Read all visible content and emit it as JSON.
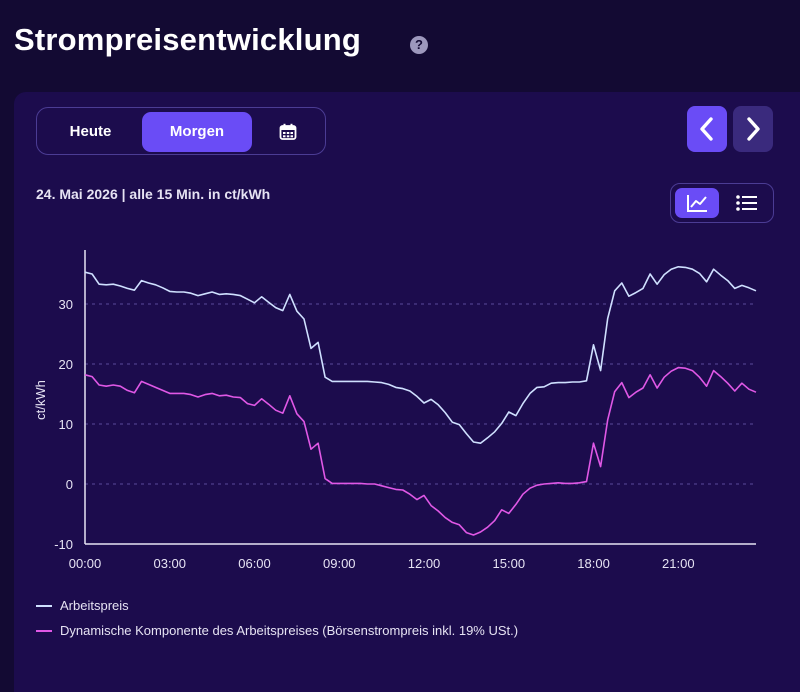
{
  "header": {
    "title": "Strompreisentwicklung",
    "help_icon": "question-circle-icon",
    "help_glyph": "?"
  },
  "controls": {
    "tabs": [
      {
        "label": "Heute",
        "active": false
      },
      {
        "label": "Morgen",
        "active": true
      }
    ],
    "calendar_icon": "calendar-icon",
    "prev_icon": "chevron-left-icon",
    "next_icon": "chevron-right-icon",
    "view_chart_icon": "line-chart-icon",
    "view_list_icon": "list-icon"
  },
  "colors": {
    "background": "#130a33",
    "card": "#1c0c4d",
    "accent": "#6a4cf6",
    "series_arbeitspreis": "#cfe0ff",
    "series_dynamisch": "#e058e6"
  },
  "chart_data": {
    "type": "line",
    "title": "24. Mai 2026 | alle 15 Min. in ct/kWh",
    "xlabel": "",
    "ylabel": "ct/kWh",
    "xlim": [
      "00:00",
      "23:45"
    ],
    "ylim": [
      -10,
      38
    ],
    "x_ticks": [
      "00:00",
      "03:00",
      "06:00",
      "09:00",
      "12:00",
      "15:00",
      "18:00",
      "21:00"
    ],
    "y_ticks": [
      -10,
      0,
      10,
      20,
      30
    ],
    "grid": "horizontal-dashed",
    "legend_position": "bottom-left",
    "x_step_minutes": 15,
    "series": [
      {
        "name": "Arbeitspreis",
        "values": [
          35.3,
          35,
          33.3,
          33.2,
          33.3,
          33,
          32.6,
          32.3,
          33.9,
          33.5,
          33.2,
          32.7,
          32.1,
          32,
          32,
          31.8,
          31.4,
          31.7,
          32,
          31.6,
          31.7,
          31.6,
          31.4,
          30.8,
          30.2,
          31.2,
          30.3,
          29.4,
          28.9,
          31.6,
          28.8,
          27.5,
          22.6,
          23.6,
          17.8,
          17.1,
          17.1,
          17.1,
          17.1,
          17.1,
          17.1,
          17,
          16.9,
          16.6,
          16.1,
          15.9,
          15.5,
          14.6,
          13.5,
          14.1,
          13.2,
          11.9,
          10.3,
          9.9,
          8.4,
          7,
          6.8,
          7.7,
          8.7,
          10.1,
          12,
          11.4,
          13.4,
          15.1,
          16.1,
          16.2,
          16.8,
          16.9,
          16.9,
          17,
          17,
          17.2,
          23.2,
          18.9,
          27.6,
          32.2,
          33.5,
          31.3,
          31.9,
          32.6,
          35,
          33.3,
          34.9,
          35.8,
          36.2,
          36.1,
          35.8,
          35.1,
          33.7,
          35.8,
          34.8,
          33.9,
          32.6,
          33.1,
          32.7,
          32.2
        ]
      },
      {
        "name": "Dynamische Komponente des Arbeitspreises (Börsenstrompreis inkl. 19% USt.)",
        "values": [
          18.2,
          17.9,
          16.5,
          16.3,
          16.5,
          16.3,
          15.6,
          15.2,
          17.1,
          16.6,
          16.1,
          15.6,
          15.1,
          15.1,
          15.1,
          14.9,
          14.5,
          14.9,
          15.1,
          14.7,
          14.8,
          14.5,
          14.4,
          13.4,
          13.1,
          14.2,
          13.3,
          12.3,
          11.8,
          14.7,
          11.7,
          10.4,
          5.8,
          6.8,
          0.9,
          0.1,
          0.1,
          0.1,
          0.1,
          0.1,
          0,
          0,
          -0.3,
          -0.6,
          -0.9,
          -1,
          -1.7,
          -2.6,
          -1.9,
          -3.6,
          -4.5,
          -5.6,
          -6.4,
          -6.8,
          -8.1,
          -8.5,
          -8,
          -7.2,
          -6.1,
          -4.3,
          -4.9,
          -3.4,
          -1.7,
          -0.7,
          -0.2,
          0,
          0.1,
          0.2,
          0.1,
          0.1,
          0.2,
          0.4,
          6.8,
          2.9,
          10.7,
          15.4,
          16.9,
          14.4,
          15.3,
          16,
          18.2,
          16,
          17.8,
          18.8,
          19.4,
          19.3,
          18.9,
          17.8,
          16.3,
          18.9,
          17.9,
          16.8,
          15.5,
          16.8,
          15.8,
          15.3
        ]
      }
    ]
  }
}
